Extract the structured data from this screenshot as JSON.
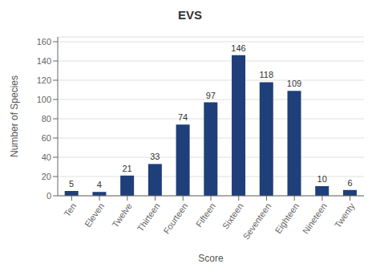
{
  "chart_data": {
    "type": "bar",
    "title": "EVS",
    "xlabel": "Score",
    "ylabel": "Number of Species",
    "categories": [
      "Ten",
      "Eleven",
      "Twelve",
      "Thirteen",
      "Fourteen",
      "Fifteen",
      "Sixteen",
      "Seventeen",
      "Eighteen",
      "Nineteen",
      "Twenty"
    ],
    "values": [
      5,
      4,
      21,
      33,
      74,
      97,
      146,
      118,
      109,
      10,
      6
    ],
    "color": "#1F3F7A",
    "ylim": [
      0,
      165
    ],
    "yticks": [
      0,
      20,
      40,
      60,
      80,
      100,
      120,
      140,
      160
    ],
    "grid": true,
    "data_labels": true
  }
}
